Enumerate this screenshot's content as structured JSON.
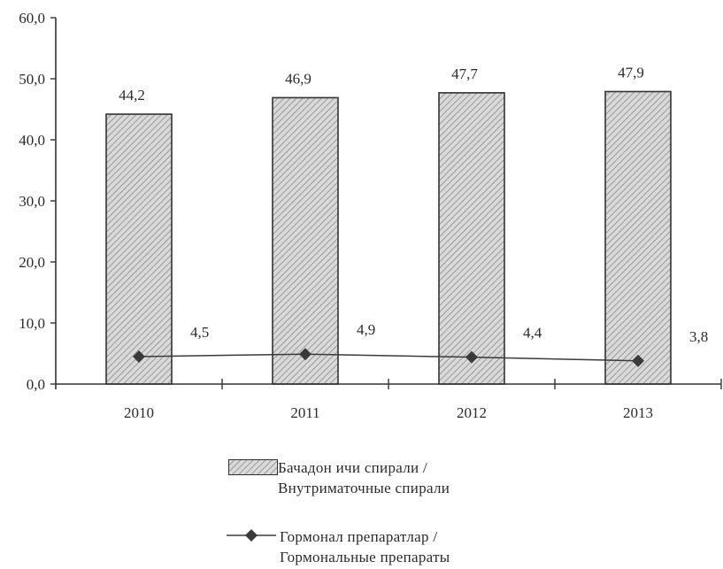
{
  "chart_data": {
    "type": "bar",
    "categories": [
      "2010",
      "2011",
      "2012",
      "2013"
    ],
    "ylim": [
      0,
      60
    ],
    "yticks": [
      "0,0",
      "10,0",
      "20,0",
      "30,0",
      "40,0",
      "50,0",
      "60,0"
    ],
    "grid": false,
    "legend_position": "bottom",
    "series": [
      {
        "name": "Бачадон ичи спирали / Внутриматочные спирали",
        "name_line1": "Бачадон ичи спирали /",
        "name_line2": "Внутриматочные спирали",
        "type": "bar",
        "values": [
          44.2,
          46.9,
          47.7,
          47.9
        ],
        "labels": [
          "44,2",
          "46,9",
          "47,7",
          "47,9"
        ],
        "color": "#bdbdbd",
        "pattern": "diagonal-hatch"
      },
      {
        "name": "Гормонал препаратлар / Гормональные препараты",
        "name_line1": "Гормонал препаратлар /",
        "name_line2": "Гормональные препараты",
        "type": "line",
        "marker": "diamond",
        "values": [
          4.5,
          4.9,
          4.4,
          3.8
        ],
        "labels": [
          "4,5",
          "4,9",
          "4,4",
          "3,8"
        ],
        "color": "#3a3a3a"
      }
    ]
  }
}
